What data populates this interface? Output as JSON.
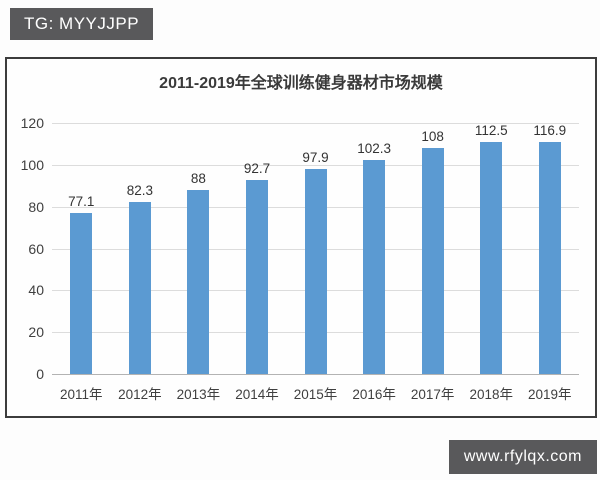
{
  "watermarks": {
    "top_left": "TG: MYYJJPP",
    "bottom_right": "www.rfylqx.com",
    "badge_bg": "#59595b",
    "badge_text_color": "#ffffff"
  },
  "chart_data": {
    "type": "bar",
    "title": "2011-2019年全球训练健身器材市场规模",
    "categories": [
      "2011年",
      "2012年",
      "2013年",
      "2014年",
      "2015年",
      "2016年",
      "2017年",
      "2018年",
      "2019年"
    ],
    "values": [
      77.1,
      82.3,
      88,
      92.7,
      97.9,
      102.3,
      108,
      112.5,
      116.9
    ],
    "data_labels": [
      "77.1",
      "82.3",
      "88",
      "92.7",
      "97.9",
      "102.3",
      "108",
      "112.5",
      "116.9"
    ],
    "xlabel": "",
    "ylabel": "",
    "ylim": [
      0,
      120
    ],
    "yticks": [
      0,
      20,
      40,
      60,
      80,
      100,
      120
    ],
    "grid": true,
    "legend": "none",
    "bar_color": "#5b9ad2"
  }
}
